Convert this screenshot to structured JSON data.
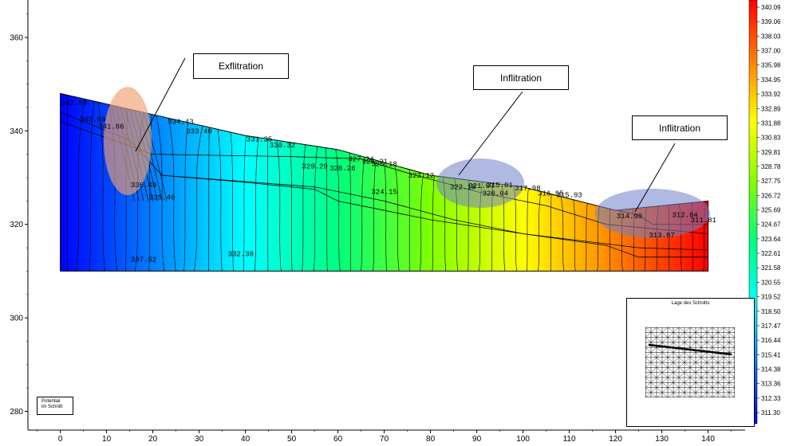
{
  "chart_data": {
    "type": "heatmap",
    "x_ticks": [
      "0",
      "10",
      "20",
      "30",
      "40",
      "50",
      "60",
      "70",
      "80",
      "90",
      "100",
      "110",
      "120",
      "130",
      "140"
    ],
    "y_ticks": [
      "360",
      "340",
      "320",
      "300",
      "280"
    ],
    "xlim": [
      -7,
      148
    ],
    "ylim": [
      276,
      368
    ],
    "domain": {
      "x": [
        0,
        140
      ],
      "bottom_y": 310,
      "surface": [
        [
          0,
          348
        ],
        [
          20,
          343.5
        ],
        [
          40,
          339
        ],
        [
          60,
          336
        ],
        [
          80,
          330.5
        ],
        [
          100,
          328
        ],
        [
          120,
          323
        ],
        [
          140,
          325
        ]
      ]
    },
    "colorbar_labels": [
      "340.09",
      "339.06",
      "338.03",
      "337.00",
      "335.98",
      "334.95",
      "333.92",
      "332.89",
      "331.88",
      "330.83",
      "329.81",
      "328.78",
      "327.75",
      "326.72",
      "325.69",
      "324.67",
      "323.64",
      "322.61",
      "321.58",
      "320.55",
      "319.52",
      "318.50",
      "317.47",
      "316.44",
      "315.41",
      "314.38",
      "313.36",
      "312.33",
      "311.30"
    ],
    "contour_labels": [
      {
        "x": 3,
        "y": 345.5,
        "text": "342.89"
      },
      {
        "x": 7,
        "y": 342,
        "text": "342.89"
      },
      {
        "x": 11,
        "y": 340.5,
        "text": "341.86"
      },
      {
        "x": 26,
        "y": 341.5,
        "text": "334.43"
      },
      {
        "x": 30,
        "y": 339.5,
        "text": "333.40"
      },
      {
        "x": 43,
        "y": 337.8,
        "text": "331.35"
      },
      {
        "x": 48,
        "y": 336.5,
        "text": "330.32"
      },
      {
        "x": 55,
        "y": 332,
        "text": "329.29"
      },
      {
        "x": 61,
        "y": 331.5,
        "text": "328.26"
      },
      {
        "x": 65,
        "y": 333.5,
        "text": "327.24"
      },
      {
        "x": 68,
        "y": 333,
        "text": "326.21"
      },
      {
        "x": 70,
        "y": 332.5,
        "text": "325.18"
      },
      {
        "x": 78,
        "y": 330,
        "text": "323.12"
      },
      {
        "x": 87,
        "y": 327.5,
        "text": "322.10"
      },
      {
        "x": 91,
        "y": 327.8,
        "text": "321.07"
      },
      {
        "x": 95,
        "y": 328,
        "text": "315.01"
      },
      {
        "x": 94,
        "y": 326.2,
        "text": "320.04"
      },
      {
        "x": 101,
        "y": 327.3,
        "text": "317.98"
      },
      {
        "x": 106,
        "y": 326.2,
        "text": "316.95"
      },
      {
        "x": 110,
        "y": 325.8,
        "text": "315.93"
      },
      {
        "x": 123,
        "y": 321.3,
        "text": "314.90"
      },
      {
        "x": 135,
        "y": 321.6,
        "text": "312.84"
      },
      {
        "x": 139,
        "y": 320.5,
        "text": "311.81"
      },
      {
        "x": 130,
        "y": 317.2,
        "text": "313.87"
      },
      {
        "x": 18,
        "y": 328,
        "text": "336.49"
      },
      {
        "x": 22,
        "y": 325.3,
        "text": "335.46"
      },
      {
        "x": 70,
        "y": 326.5,
        "text": "324.15"
      },
      {
        "x": 39,
        "y": 313.2,
        "text": "332.38"
      },
      {
        "x": 18,
        "y": 312,
        "text": "337.52"
      }
    ]
  },
  "callouts": {
    "exfiltration": "Exflitration",
    "infiltration_1": "Inflitration",
    "infiltration_2": "Inflitration"
  },
  "legend": {
    "line1": "Potential",
    "line2": "im Schnitt"
  },
  "inset": {
    "title": "Lage des Schnitts"
  },
  "colors": {
    "scale": [
      "#0000ff",
      "#0080ff",
      "#00ffff",
      "#00ff80",
      "#80ff00",
      "#ffff00",
      "#ff8000",
      "#ff0000"
    ],
    "highlight_orange": "#f0a070",
    "highlight_blue": "#7080c8"
  }
}
